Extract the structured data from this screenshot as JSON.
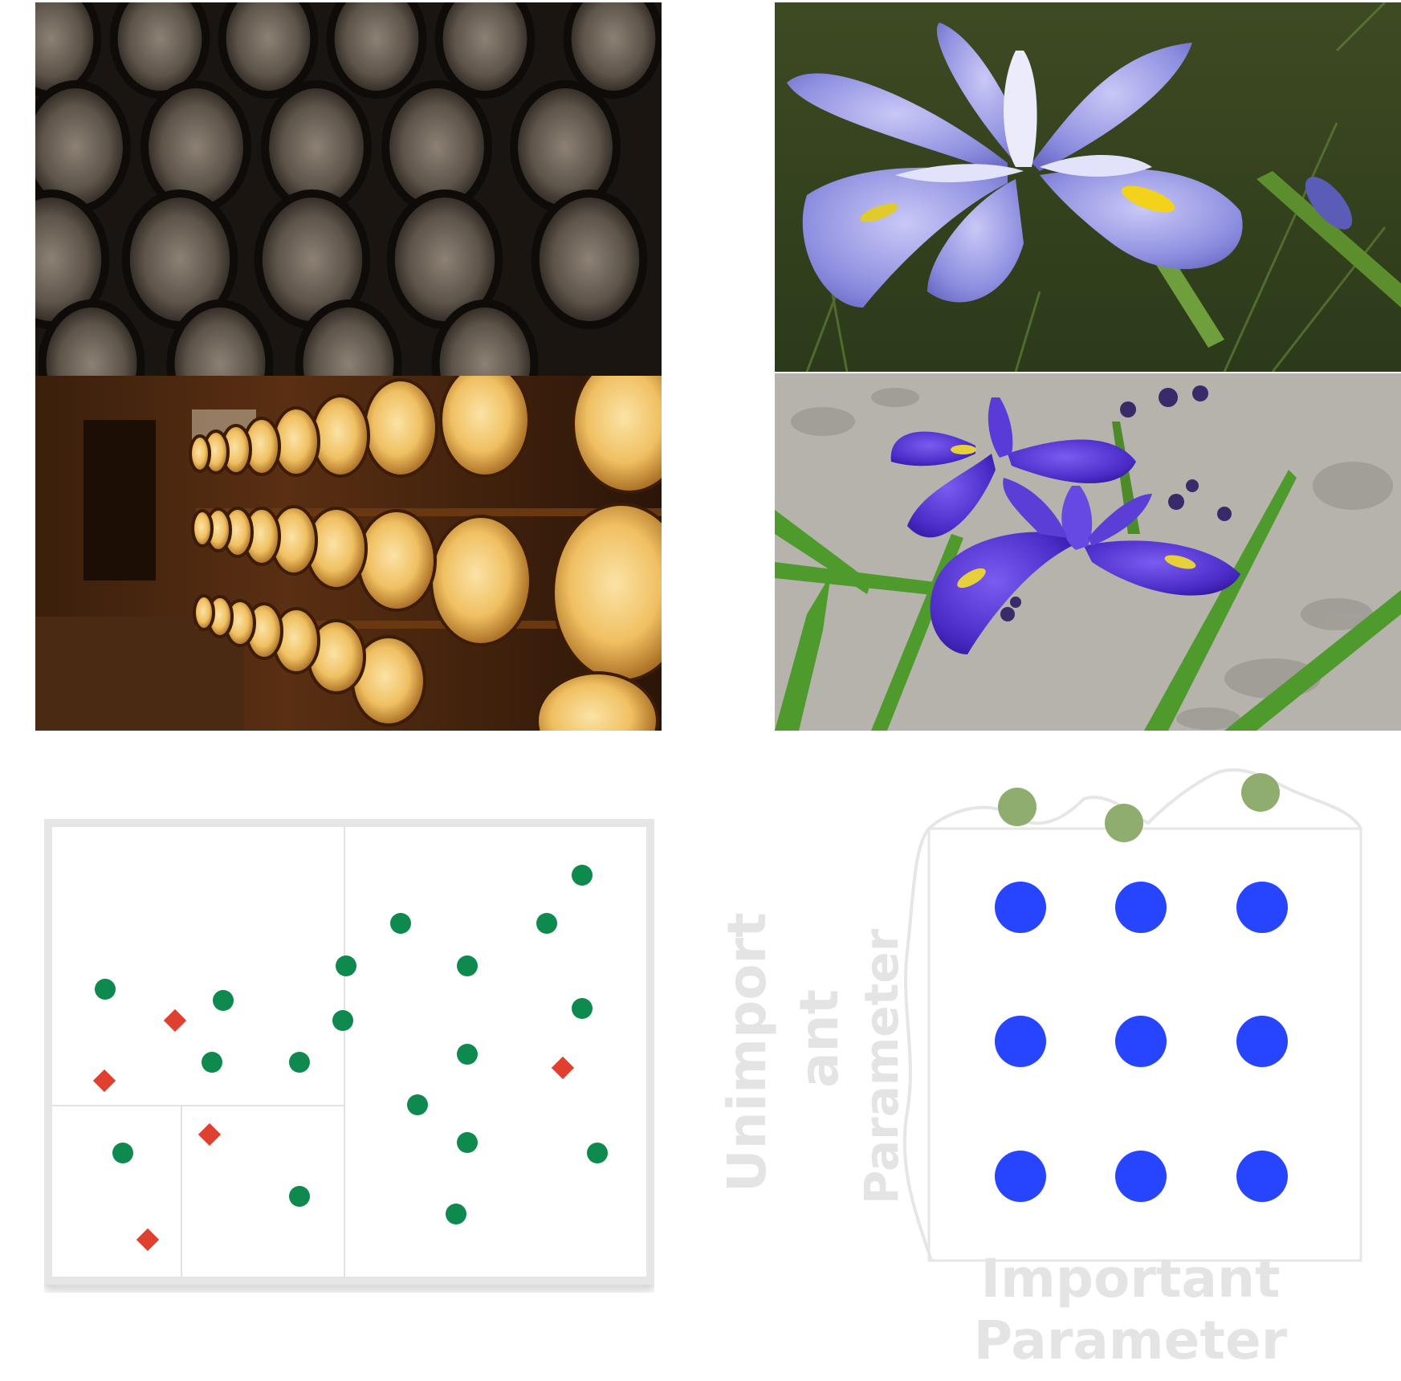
{
  "grid_search_panel": {
    "x_label": "Important Parameter",
    "y_label": "Unimportant Parameter",
    "x_label_lines": [
      "Important",
      "Parameter"
    ],
    "y_label_left": [
      "Unimport",
      "ant"
    ],
    "y_label_right": "Parameter"
  },
  "colors": {
    "class_a_points": "#0e8a4f",
    "class_b_points": "#e0402f",
    "grid_points": "#2744ff",
    "profile_points": "#8fad6e",
    "ghost_text": "#e4e4e4",
    "frame": "#e6e6e6"
  },
  "icons": {
    "class_a_marker": "circle",
    "class_b_marker": "diamond"
  }
}
